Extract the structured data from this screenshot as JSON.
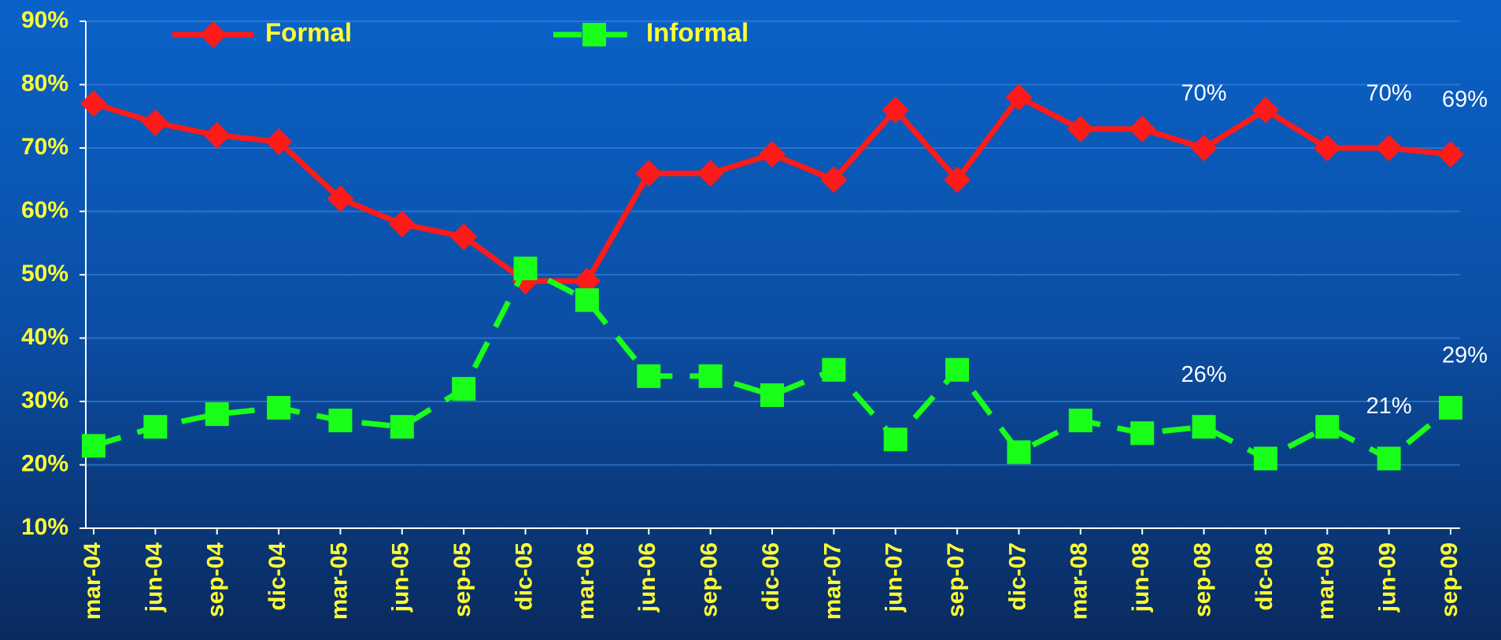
{
  "chart_data": {
    "type": "line",
    "categories": [
      "mar-04",
      "jun-04",
      "sep-04",
      "dic-04",
      "mar-05",
      "jun-05",
      "sep-05",
      "dic-05",
      "mar-06",
      "jun-06",
      "sep-06",
      "dic-06",
      "mar-07",
      "jun-07",
      "sep-07",
      "dic-07",
      "mar-08",
      "jun-08",
      "sep-08",
      "dic-08",
      "mar-09",
      "jun-09",
      "sep-09"
    ],
    "series": [
      {
        "name": "Formal",
        "color": "#ff1a1a",
        "marker": "diamond",
        "dashed": false,
        "values": [
          77,
          74,
          72,
          71,
          62,
          58,
          56,
          49,
          49,
          66,
          66,
          69,
          65,
          76,
          65,
          78,
          73,
          73,
          70,
          76,
          70,
          70,
          69
        ],
        "value_labels": [
          null,
          null,
          null,
          null,
          null,
          null,
          null,
          null,
          null,
          null,
          null,
          null,
          null,
          null,
          null,
          null,
          null,
          null,
          "70%",
          null,
          null,
          "70%",
          "69%"
        ]
      },
      {
        "name": "Informal",
        "color": "#1aff1a",
        "marker": "square",
        "dashed": true,
        "values": [
          23,
          26,
          28,
          29,
          27,
          26,
          32,
          51,
          46,
          34,
          34,
          31,
          35,
          24,
          35,
          22,
          27,
          25,
          26,
          21,
          26,
          21,
          29
        ],
        "value_labels": [
          null,
          null,
          null,
          null,
          null,
          null,
          null,
          null,
          null,
          null,
          null,
          null,
          null,
          null,
          null,
          null,
          null,
          null,
          "26%",
          null,
          null,
          "21%",
          "29%"
        ]
      }
    ],
    "ylim": [
      10,
      90
    ],
    "yticks": [
      {
        "value": 10,
        "label": "10%"
      },
      {
        "value": 20,
        "label": "20%"
      },
      {
        "value": 30,
        "label": "30%"
      },
      {
        "value": 40,
        "label": "40%"
      },
      {
        "value": 50,
        "label": "50%"
      },
      {
        "value": 60,
        "label": "60%"
      },
      {
        "value": 70,
        "label": "70%"
      },
      {
        "value": 80,
        "label": "80%"
      },
      {
        "value": 90,
        "label": "90%"
      }
    ],
    "grid": true,
    "legend": "top"
  }
}
